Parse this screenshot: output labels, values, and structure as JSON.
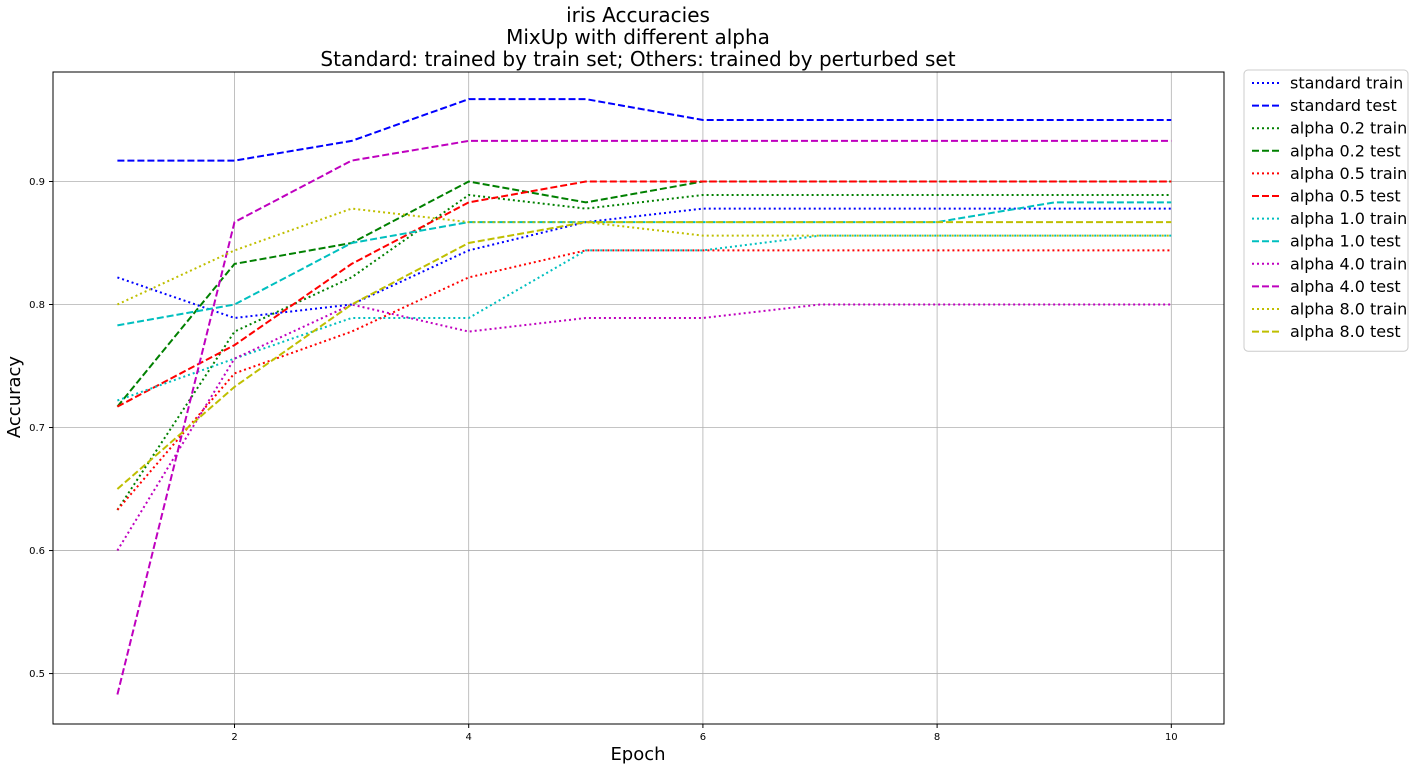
{
  "chart_data": {
    "type": "line",
    "title": [
      "iris Accuracies",
      "MixUp with different alpha",
      "Standard: trained by train set; Others: trained by perturbed set"
    ],
    "xlabel": "Epoch",
    "ylabel": "Accuracy",
    "xlim": [
      0.45,
      10.45
    ],
    "ylim": [
      0.459,
      0.989
    ],
    "xticks": [
      2,
      4,
      6,
      8,
      10
    ],
    "yticks": [
      0.5,
      0.6,
      0.7,
      0.8,
      0.9
    ],
    "grid": true,
    "legend_placement": "outside-upper-right",
    "x": [
      1,
      2,
      3,
      4,
      5,
      6,
      7,
      8,
      9,
      10
    ],
    "series": [
      {
        "name": "standard train",
        "color": "#0000ff",
        "style": "dotted",
        "values": [
          0.822,
          0.789,
          0.8,
          0.844,
          0.867,
          0.878,
          0.878,
          0.878,
          0.878,
          0.878
        ]
      },
      {
        "name": "standard test",
        "color": "#0000ff",
        "style": "dashed",
        "values": [
          0.917,
          0.917,
          0.933,
          0.967,
          0.967,
          0.95,
          0.95,
          0.95,
          0.95,
          0.95
        ]
      },
      {
        "name": "alpha 0.2 train",
        "color": "#008000",
        "style": "dotted",
        "values": [
          0.633,
          0.778,
          0.822,
          0.889,
          0.878,
          0.889,
          0.889,
          0.889,
          0.889,
          0.889
        ]
      },
      {
        "name": "alpha 0.2 test",
        "color": "#008000",
        "style": "dashed",
        "values": [
          0.717,
          0.833,
          0.85,
          0.9,
          0.883,
          0.9,
          0.9,
          0.9,
          0.9,
          0.9
        ]
      },
      {
        "name": "alpha 0.5 train",
        "color": "#ff0000",
        "style": "dotted",
        "values": [
          0.633,
          0.744,
          0.778,
          0.822,
          0.844,
          0.844,
          0.844,
          0.844,
          0.844,
          0.844
        ]
      },
      {
        "name": "alpha 0.5 test",
        "color": "#ff0000",
        "style": "dashed",
        "values": [
          0.717,
          0.767,
          0.833,
          0.883,
          0.9,
          0.9,
          0.9,
          0.9,
          0.9,
          0.9
        ]
      },
      {
        "name": "alpha 1.0 train",
        "color": "#00bfbf",
        "style": "dotted",
        "values": [
          0.722,
          0.756,
          0.789,
          0.789,
          0.844,
          0.844,
          0.856,
          0.856,
          0.856,
          0.856
        ]
      },
      {
        "name": "alpha 1.0 test",
        "color": "#00bfbf",
        "style": "dashed",
        "values": [
          0.783,
          0.8,
          0.85,
          0.867,
          0.867,
          0.867,
          0.867,
          0.867,
          0.883,
          0.883
        ]
      },
      {
        "name": "alpha 4.0 train",
        "color": "#bf00bf",
        "style": "dotted",
        "values": [
          0.6,
          0.756,
          0.8,
          0.778,
          0.789,
          0.789,
          0.8,
          0.8,
          0.8,
          0.8
        ]
      },
      {
        "name": "alpha 4.0 test",
        "color": "#bf00bf",
        "style": "dashed",
        "values": [
          0.483,
          0.867,
          0.917,
          0.933,
          0.933,
          0.933,
          0.933,
          0.933,
          0.933,
          0.933
        ]
      },
      {
        "name": "alpha 8.0 train",
        "color": "#bfbf00",
        "style": "dotted",
        "values": [
          0.8,
          0.844,
          0.878,
          0.867,
          0.867,
          0.856,
          0.856,
          0.856,
          0.856,
          0.856
        ]
      },
      {
        "name": "alpha 8.0 test",
        "color": "#bfbf00",
        "style": "dashed",
        "values": [
          0.65,
          0.733,
          0.8,
          0.85,
          0.867,
          0.867,
          0.867,
          0.867,
          0.867,
          0.867
        ]
      }
    ]
  }
}
